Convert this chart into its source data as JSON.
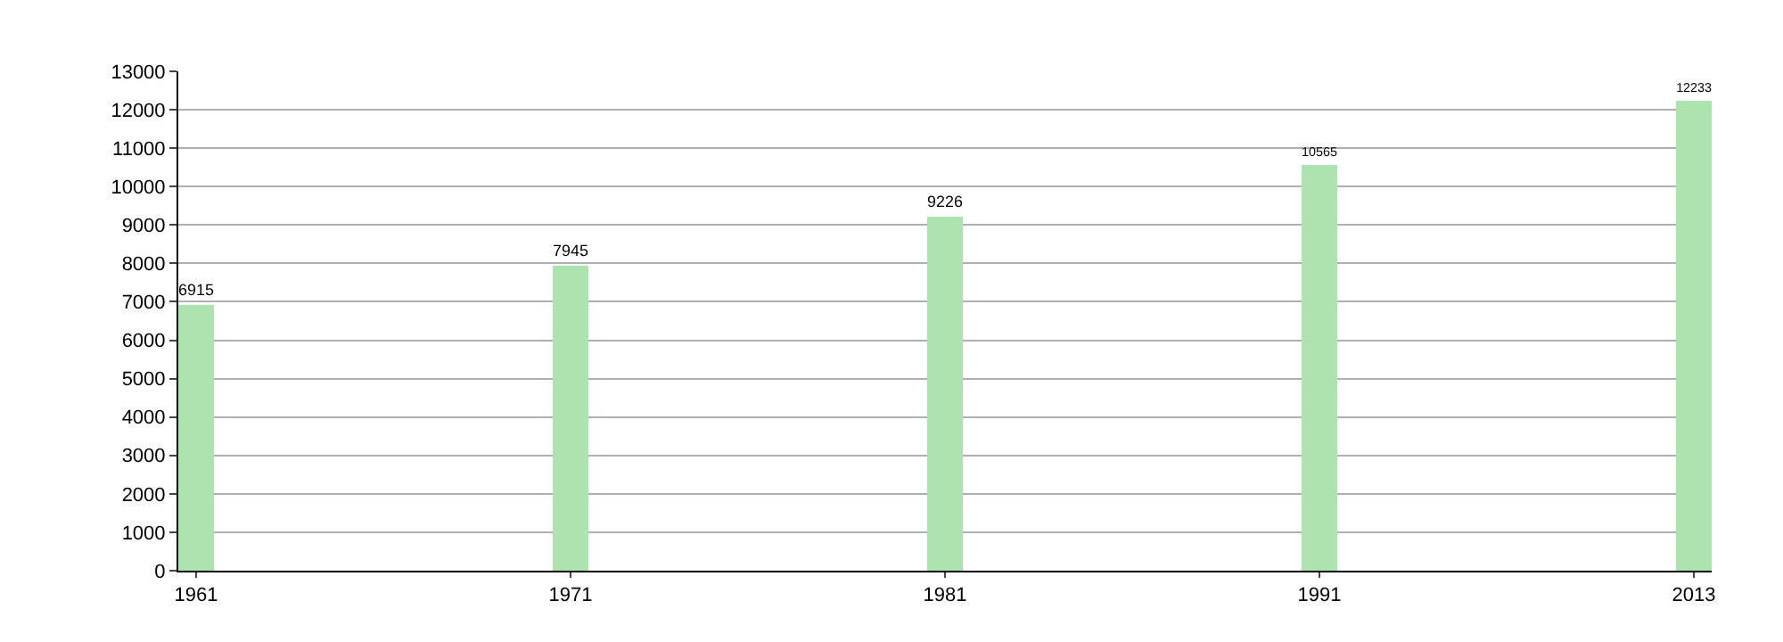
{
  "chart_data": {
    "type": "bar",
    "categories": [
      "1961",
      "1971",
      "1981",
      "1991",
      "2013"
    ],
    "values": [
      6915,
      7945,
      9226,
      10565,
      12233
    ],
    "color": "#ade3ae",
    "ylim": [
      0,
      13000
    ],
    "yticks": [
      0,
      1000,
      2000,
      3000,
      4000,
      5000,
      6000,
      7000,
      8000,
      9000,
      10000,
      11000,
      12000,
      13000
    ],
    "grid": "y",
    "data_labels": true
  }
}
